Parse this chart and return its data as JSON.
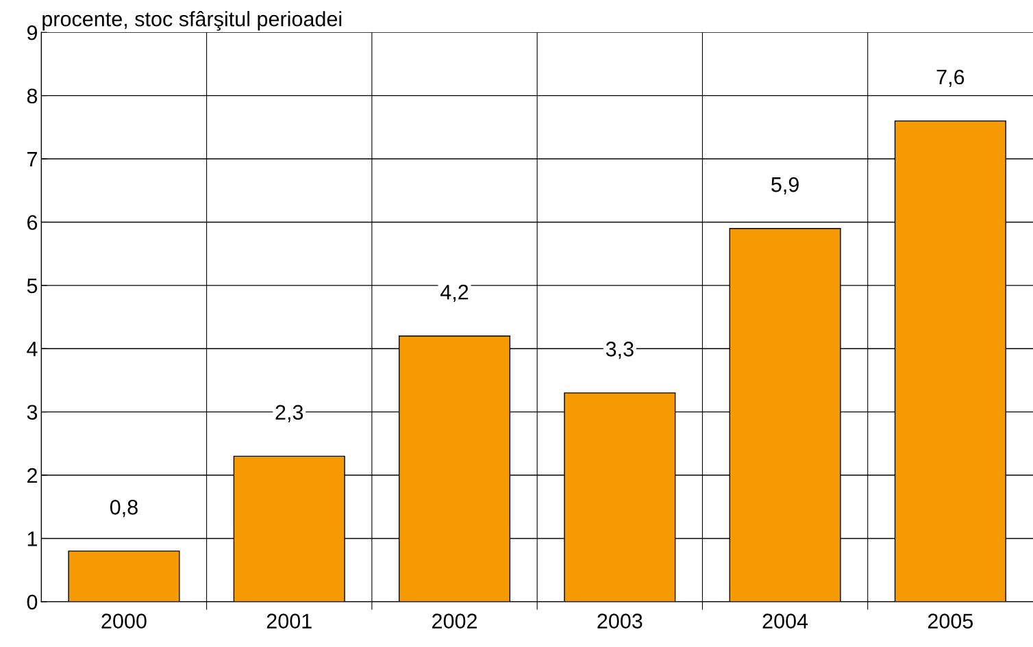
{
  "chart_data": {
    "type": "bar",
    "ylabel": "procente, stoc sfârşitul perioadei",
    "categories": [
      "2000",
      "2001",
      "2002",
      "2003",
      "2004",
      "2005"
    ],
    "values": [
      0.8,
      2.3,
      4.2,
      3.3,
      5.9,
      7.6
    ],
    "value_labels": [
      "0,8",
      "2,3",
      "4,2",
      "3,3",
      "5,9",
      "7,6"
    ],
    "color": "#f59a00",
    "ylim": [
      0,
      9
    ],
    "yticks": [
      0,
      1,
      2,
      3,
      4,
      5,
      6,
      7,
      8,
      9
    ],
    "grid": true
  }
}
